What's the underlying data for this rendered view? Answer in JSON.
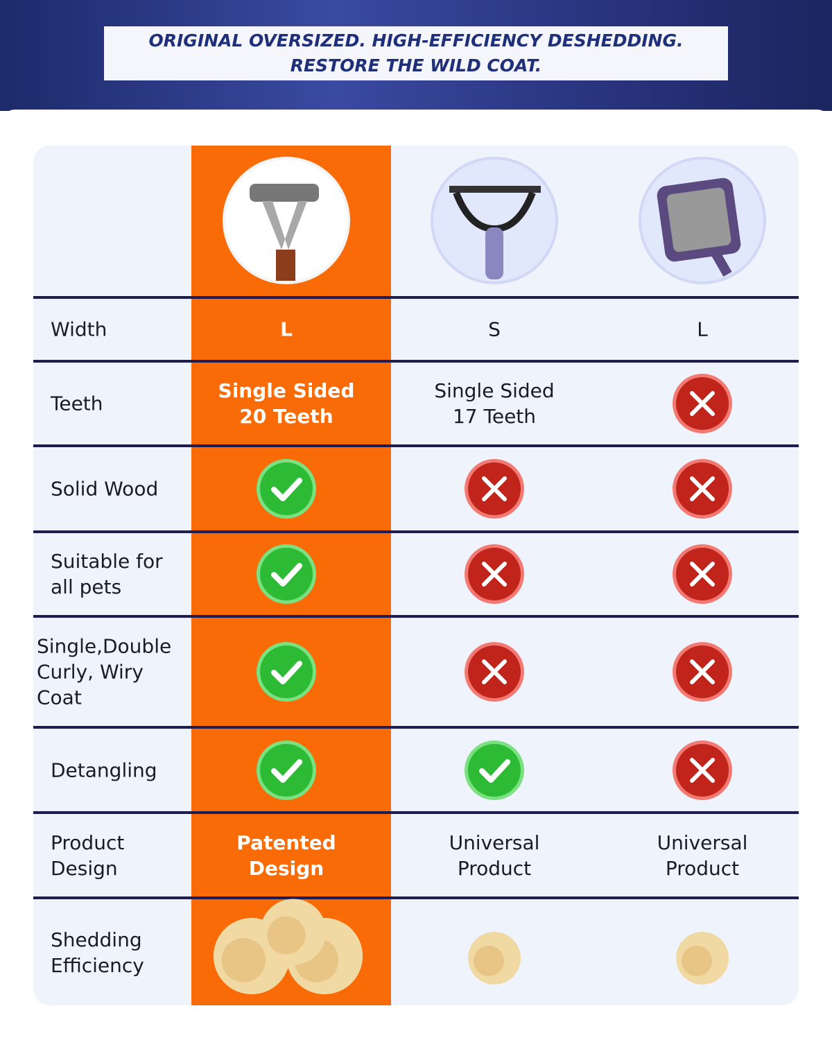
{
  "header": {
    "line1": "ORIGINAL OVERSIZED. HIGH-EFFICIENCY DESHEDDING.",
    "line2": "RESTORE THE WILD COAT."
  },
  "table": {
    "rows": [
      {
        "label": "Width",
        "cells": [
          "L",
          "S",
          "L"
        ]
      },
      {
        "label": "Teeth",
        "cells": [
          "Single Sided\n20 Teeth",
          "Single Sided\n17 Teeth",
          false
        ]
      },
      {
        "label": "Solid Wood",
        "cells": [
          true,
          false,
          false
        ]
      },
      {
        "label": "Suitable for\nall pets",
        "cells": [
          true,
          false,
          false
        ]
      },
      {
        "label": "Single,Double\nCurly, Wiry\nCoat",
        "cells": [
          true,
          false,
          false
        ]
      },
      {
        "label": "Detangling",
        "cells": [
          true,
          true,
          false
        ]
      },
      {
        "label": "Product\nDesign",
        "cells": [
          "Patented\nDesign",
          "Universal\nProduct",
          "Universal\nProduct"
        ]
      },
      {
        "label": "Shedding\nEfficiency"
      }
    ]
  }
}
